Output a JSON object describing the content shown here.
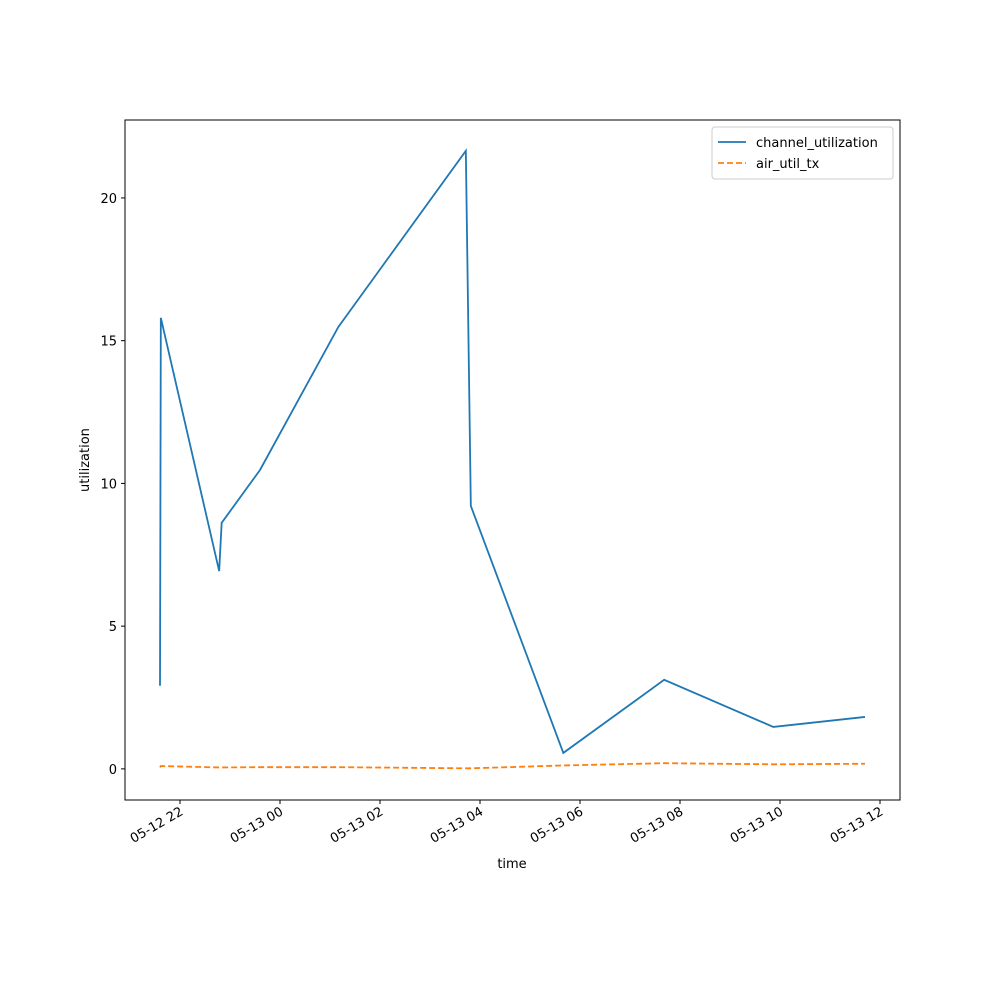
{
  "chart_data": {
    "type": "line",
    "x_label": "time",
    "y_label": "utilization",
    "x": [
      "05-12 21:36",
      "05-12 21:37",
      "05-12 22:47",
      "05-12 22:50",
      "05-12 23:36",
      "05-13 01:10",
      "05-13 03:43",
      "05-13 03:49",
      "05-13 05:40",
      "05-13 07:41",
      "05-13 09:52",
      "05-13 11:42"
    ],
    "series": [
      {
        "name": "channel_utilization",
        "color": "#1f77b4",
        "dash": "solid",
        "values": [
          2.91,
          15.8,
          6.93,
          8.62,
          10.47,
          15.48,
          21.65,
          9.21,
          0.56,
          3.12,
          1.47,
          1.82
        ]
      },
      {
        "name": "air_util_tx",
        "color": "#ff7f0e",
        "dash": "dashed",
        "values": [
          0.05,
          0.1,
          0.05,
          0.05,
          0.06,
          0.06,
          0.02,
          0.02,
          0.12,
          0.2,
          0.16,
          0.18
        ]
      }
    ],
    "xlim": [
      "05-12 20:54",
      "05-13 12:24"
    ],
    "xticks": [
      {
        "value": "05-12 22:00",
        "label": "05-12 22"
      },
      {
        "value": "05-13 00:00",
        "label": "05-13 00"
      },
      {
        "value": "05-13 02:00",
        "label": "05-13 02"
      },
      {
        "value": "05-13 04:00",
        "label": "05-13 04"
      },
      {
        "value": "05-13 06:00",
        "label": "05-13 06"
      },
      {
        "value": "05-13 08:00",
        "label": "05-13 08"
      },
      {
        "value": "05-13 10:00",
        "label": "05-13 10"
      },
      {
        "value": "05-13 12:00",
        "label": "05-13 12"
      }
    ],
    "ylim": [
      -1.09,
      22.73
    ],
    "yticks": [
      0,
      5,
      10,
      15,
      20
    ],
    "grid": false,
    "legend": "upper right"
  }
}
